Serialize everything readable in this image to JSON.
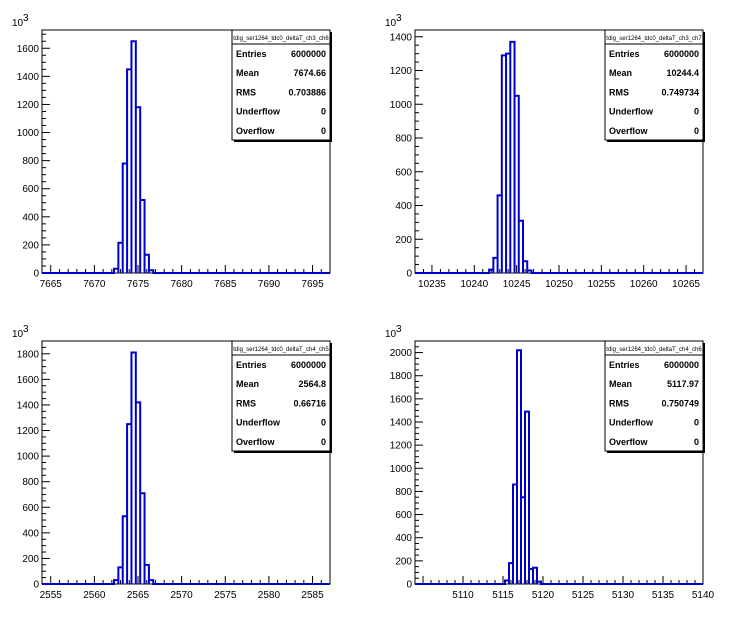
{
  "chart_data": [
    {
      "type": "histogram",
      "title": "tdig_ser1264_tdc0_deltaT_ch3_ch6",
      "y_multiplier_label": "10",
      "y_multiplier_exp": "3",
      "xlim": [
        7664,
        7697
      ],
      "ylim": [
        0,
        1730
      ],
      "x_ticks": [
        7665,
        7670,
        7675,
        7680,
        7685,
        7690,
        7695
      ],
      "y_ticks": [
        0,
        200,
        400,
        600,
        800,
        1000,
        1200,
        1400,
        1600
      ],
      "bin_width": 0.5,
      "bins": [
        {
          "x": 7672.5,
          "y": 30
        },
        {
          "x": 7673,
          "y": 215
        },
        {
          "x": 7673.5,
          "y": 780
        },
        {
          "x": 7674,
          "y": 1450
        },
        {
          "x": 7674.5,
          "y": 1650
        },
        {
          "x": 7675,
          "y": 1180
        },
        {
          "x": 7675.5,
          "y": 520
        },
        {
          "x": 7676,
          "y": 130
        },
        {
          "x": 7676.5,
          "y": 20
        }
      ],
      "stats": {
        "labels": [
          "Entries",
          "Mean",
          "RMS",
          "Underflow",
          "Overflow"
        ],
        "values": [
          "6000000",
          "7674.66",
          "0.703886",
          "0",
          "0"
        ]
      }
    },
    {
      "type": "histogram",
      "title": "tdig_ser1264_tdc0_deltaT_ch3_ch7",
      "y_multiplier_label": "10",
      "y_multiplier_exp": "3",
      "xlim": [
        10233,
        10267
      ],
      "ylim": [
        0,
        1440
      ],
      "x_ticks": [
        10235,
        10240,
        10245,
        10250,
        10255,
        10260,
        10265
      ],
      "y_ticks": [
        0,
        200,
        400,
        600,
        800,
        1000,
        1200,
        1400
      ],
      "bin_width": 0.5,
      "bins": [
        {
          "x": 10242,
          "y": 20
        },
        {
          "x": 10242.5,
          "y": 90
        },
        {
          "x": 10243,
          "y": 460
        },
        {
          "x": 10243.5,
          "y": 1290
        },
        {
          "x": 10244,
          "y": 1300
        },
        {
          "x": 10244.5,
          "y": 1370
        },
        {
          "x": 10245,
          "y": 1050
        },
        {
          "x": 10245.5,
          "y": 310
        },
        {
          "x": 10246,
          "y": 70
        },
        {
          "x": 10246.5,
          "y": 15
        }
      ],
      "stats": {
        "labels": [
          "Entries",
          "Mean",
          "RMS",
          "Underflow",
          "Overflow"
        ],
        "values": [
          "6000000",
          "10244.4",
          "0.749734",
          "0",
          "0"
        ]
      }
    },
    {
      "type": "histogram",
      "title": "tdig_ser1264_tdc0_deltaT_ch4_ch5",
      "y_multiplier_label": "10",
      "y_multiplier_exp": "3",
      "xlim": [
        2554,
        2587
      ],
      "ylim": [
        0,
        1900
      ],
      "x_ticks": [
        2555,
        2560,
        2565,
        2570,
        2575,
        2580,
        2585
      ],
      "y_ticks": [
        0,
        200,
        400,
        600,
        800,
        1000,
        1200,
        1400,
        1600,
        1800
      ],
      "bin_width": 0.5,
      "bins": [
        {
          "x": 2562.5,
          "y": 30
        },
        {
          "x": 2563,
          "y": 130
        },
        {
          "x": 2563.5,
          "y": 530
        },
        {
          "x": 2564,
          "y": 1250
        },
        {
          "x": 2564.5,
          "y": 1810
        },
        {
          "x": 2565,
          "y": 1420
        },
        {
          "x": 2565.5,
          "y": 710
        },
        {
          "x": 2566,
          "y": 150
        },
        {
          "x": 2566.5,
          "y": 30
        }
      ],
      "stats": {
        "labels": [
          "Entries",
          "Mean",
          "RMS",
          "Underflow",
          "Overflow"
        ],
        "values": [
          "6000000",
          "2564.8",
          "0.66716",
          "0",
          "0"
        ]
      }
    },
    {
      "type": "histogram",
      "title": "tdig_ser1264_tdc0_deltaT_ch4_ch6",
      "y_multiplier_label": "10",
      "y_multiplier_exp": "3",
      "xlim": [
        5104,
        5140
      ],
      "ylim": [
        0,
        2100
      ],
      "x_ticks": [
        5110,
        5115,
        5120,
        5125,
        5130,
        5135,
        5140
      ],
      "y_ticks": [
        0,
        200,
        400,
        600,
        800,
        1000,
        1200,
        1400,
        1600,
        1800,
        2000
      ],
      "bin_width": 0.5,
      "bins": [
        {
          "x": 5115.5,
          "y": 30
        },
        {
          "x": 5116,
          "y": 180
        },
        {
          "x": 5116.5,
          "y": 860
        },
        {
          "x": 5117,
          "y": 2020
        },
        {
          "x": 5117.5,
          "y": 750
        },
        {
          "x": 5118,
          "y": 1490
        },
        {
          "x": 5118.5,
          "y": 130
        },
        {
          "x": 5119,
          "y": 140
        },
        {
          "x": 5119.5,
          "y": 20
        }
      ],
      "stats": {
        "labels": [
          "Entries",
          "Mean",
          "RMS",
          "Underflow",
          "Overflow"
        ],
        "values": [
          "6000000",
          "5117.97",
          "0.750749",
          "0",
          "0"
        ]
      }
    }
  ]
}
